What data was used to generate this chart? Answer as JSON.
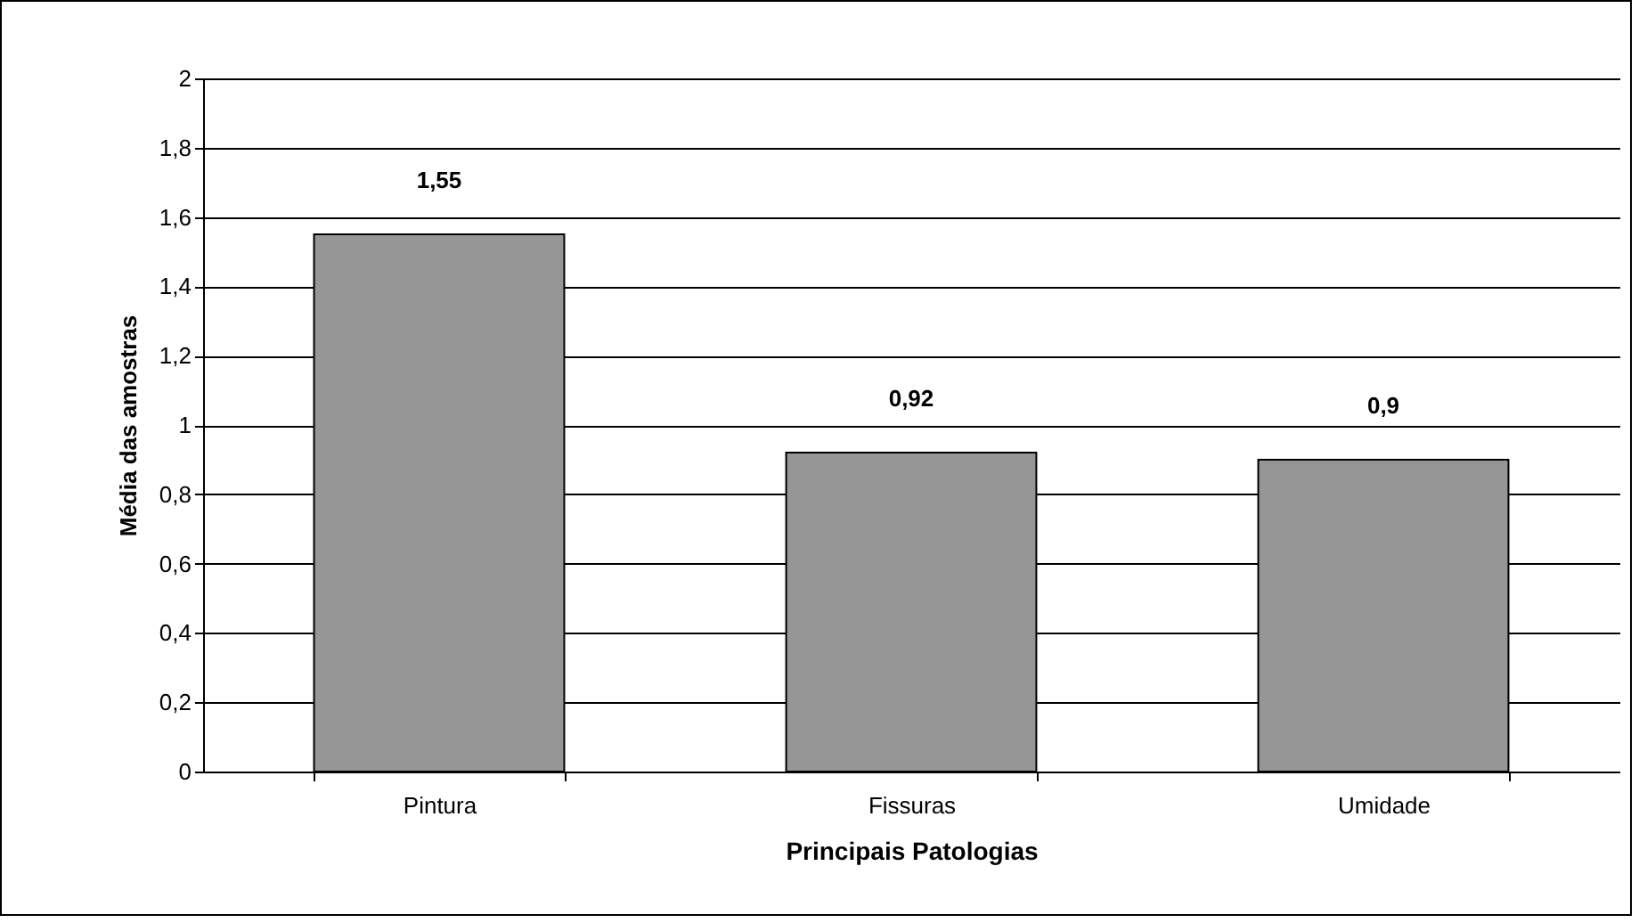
{
  "chart_data": {
    "type": "bar",
    "xlabel": "Principais Patologias",
    "ylabel": "Média das amostras",
    "categories": [
      "Pintura",
      "Fissuras",
      "Umidade"
    ],
    "values": [
      1.55,
      0.92,
      0.9
    ],
    "value_labels": [
      "1,55",
      "0,92",
      "0,9"
    ],
    "color": "#969696",
    "ylim": [
      0,
      2
    ],
    "yticks": [
      0,
      {
        "value": 0.2,
        "label": "0,2"
      },
      {
        "value": 0.4,
        "label": "0,4"
      },
      {
        "value": 0.6,
        "label": "0,6"
      },
      {
        "value": 0.8,
        "label": "0,8"
      },
      1,
      {
        "value": 1.2,
        "label": "1,2"
      },
      {
        "value": 1.4,
        "label": "1,4"
      },
      {
        "value": 1.6,
        "label": "1,6"
      },
      {
        "value": 1.8,
        "label": "1,8"
      },
      2
    ],
    "grid": "y"
  }
}
